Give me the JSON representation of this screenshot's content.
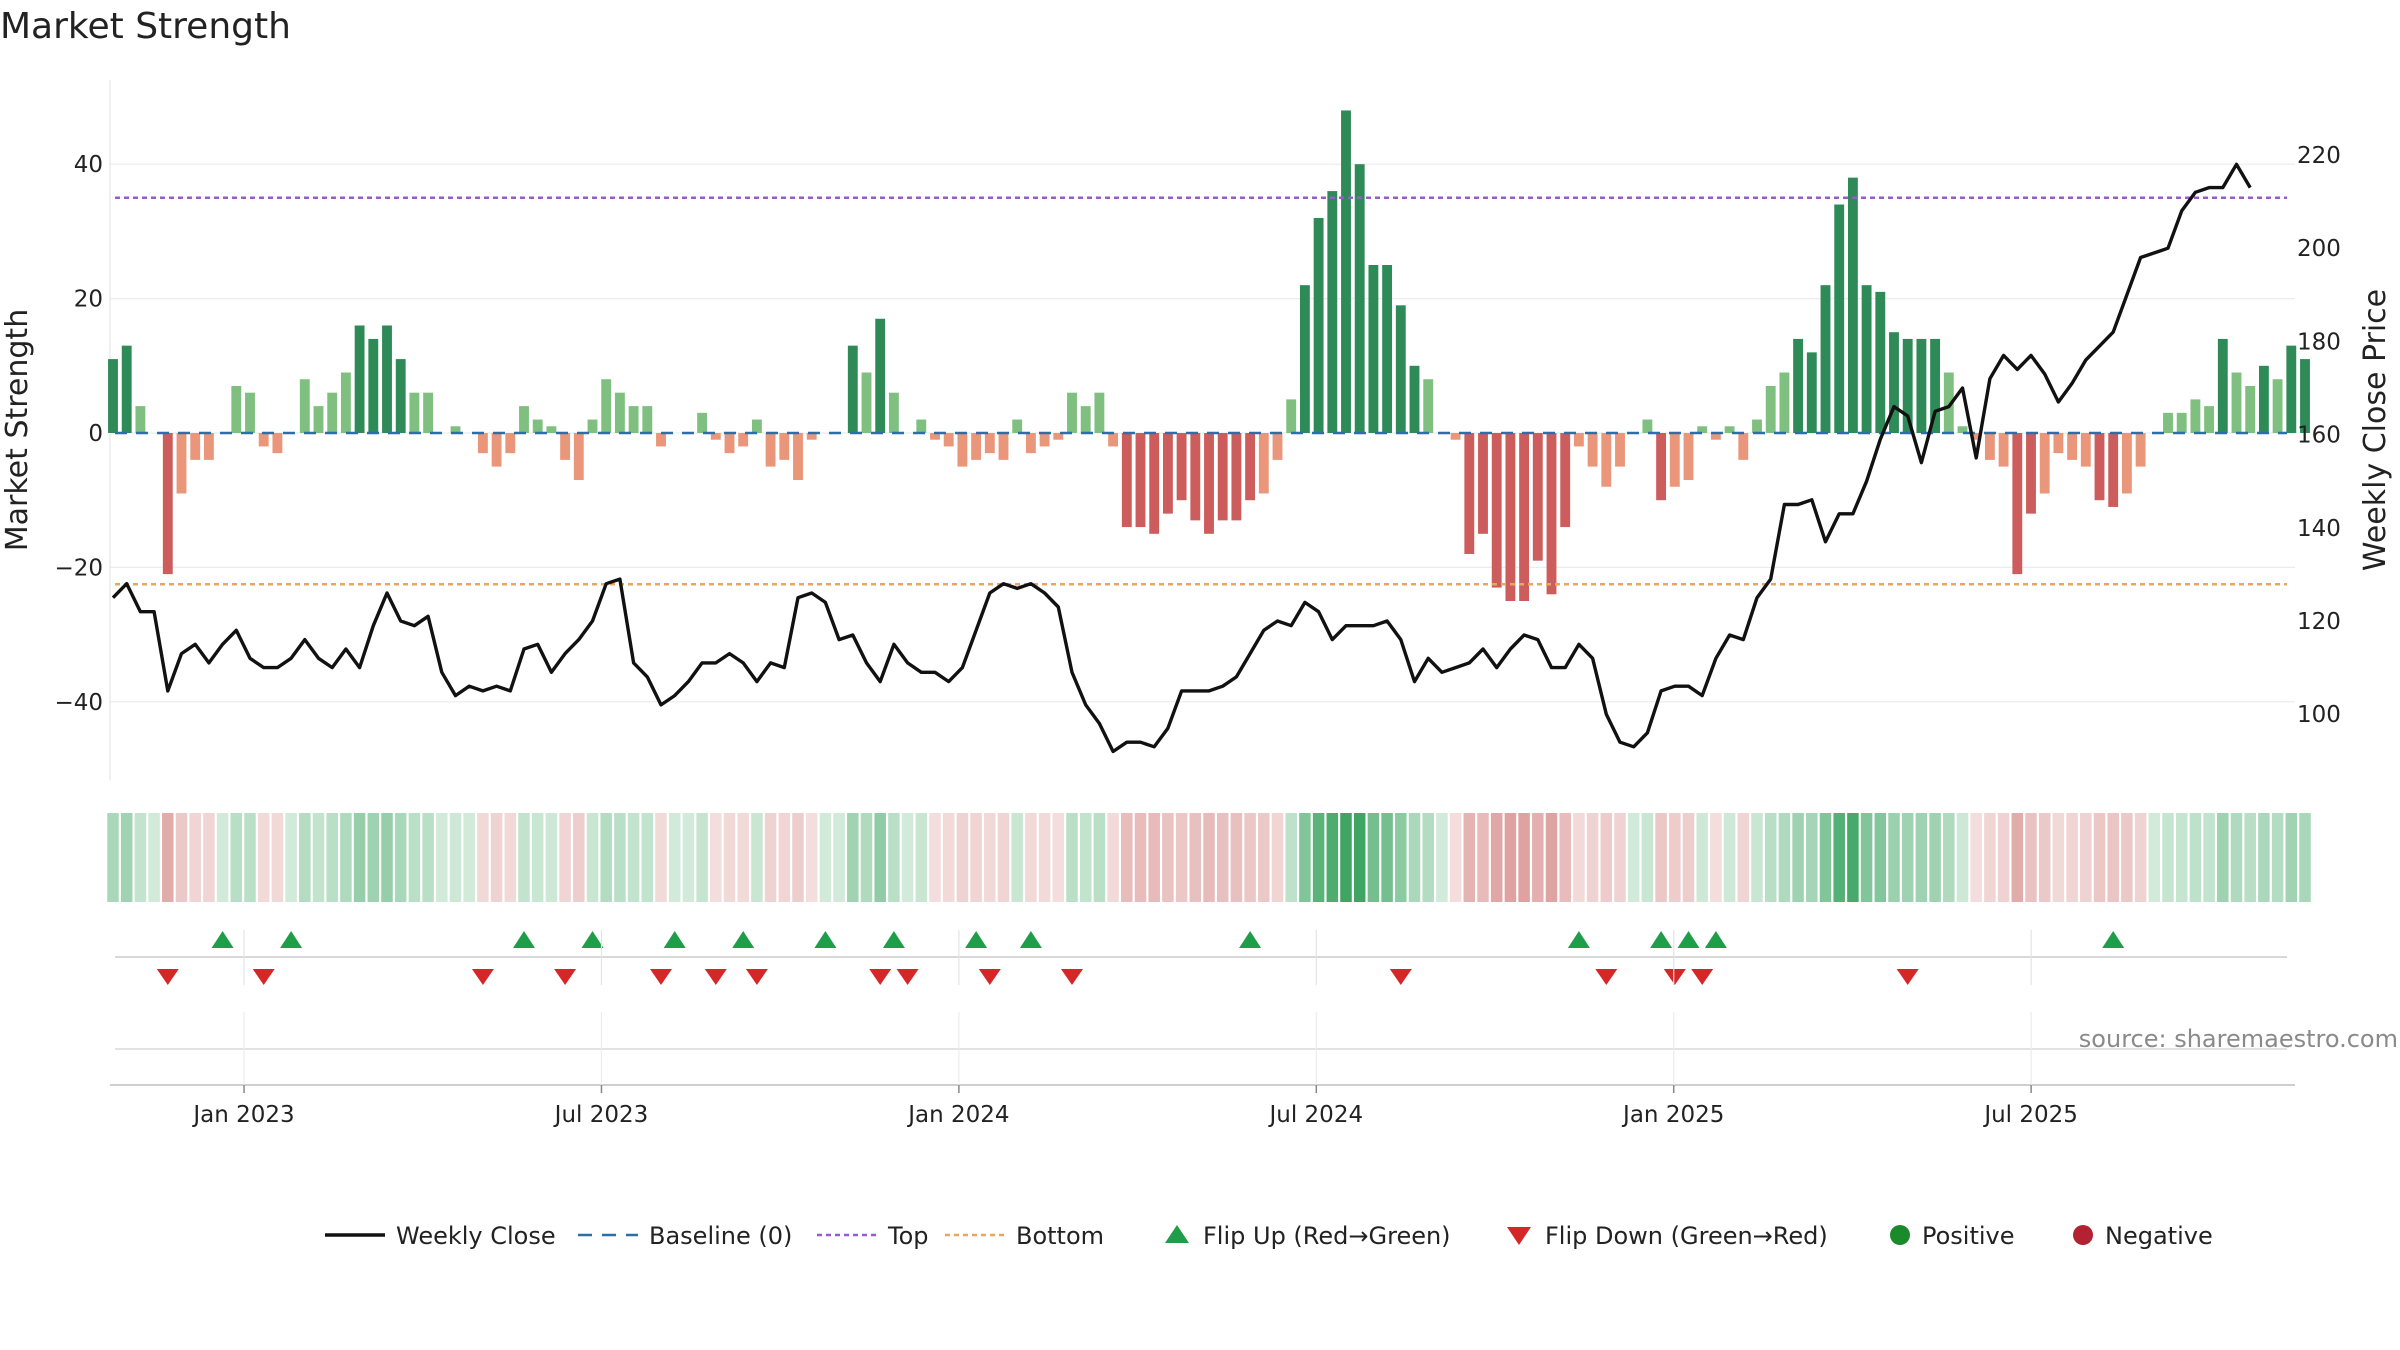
{
  "chart_data": {
    "type": "bar",
    "title": "Market Strength",
    "ylabel": "Market Strength",
    "ylabel_right": "Weekly Close Price",
    "ylim": [
      -52,
      52
    ],
    "ylim_right": [
      87,
      234
    ],
    "yticks": [
      40,
      20,
      0,
      -20,
      -40
    ],
    "yticks_right": [
      220,
      200,
      180,
      160,
      140,
      120,
      100
    ],
    "ytick_labels": [
      "40",
      "20",
      "0",
      "−20",
      "−40"
    ],
    "yticks_right_labels": [
      "220",
      "200",
      "180",
      "160",
      "140",
      "120",
      "100"
    ],
    "top_level": 35,
    "bottom_level": -22.5,
    "baseline_level": 0,
    "x_months_since_oct_2022": [
      0,
      36.8
    ],
    "xticks": [
      {
        "label": "Jan 2023",
        "month": 3
      },
      {
        "label": "Jul 2023",
        "month": 9
      },
      {
        "label": "Jan 2024",
        "month": 15
      },
      {
        "label": "Jul 2024",
        "month": 21
      },
      {
        "label": "Jan 2025",
        "month": 27
      },
      {
        "label": "Jul 2025",
        "month": 33
      }
    ],
    "strength": [
      11,
      13,
      4,
      0,
      -21,
      -9,
      -4,
      -4,
      0,
      7,
      6,
      -2,
      -3,
      0,
      8,
      4,
      6,
      9,
      16,
      14,
      16,
      11,
      6,
      6,
      0,
      1,
      0,
      -3,
      -5,
      -3,
      4,
      2,
      1,
      -4,
      -7,
      2,
      8,
      6,
      4,
      4,
      -2,
      0,
      0,
      3,
      -1,
      -3,
      -2,
      2,
      -5,
      -4,
      -7,
      -1,
      0,
      0,
      13,
      9,
      17,
      6,
      0,
      2,
      -1,
      -2,
      -5,
      -4,
      -3,
      -4,
      2,
      -3,
      -2,
      -1,
      6,
      4,
      6,
      -2,
      -14,
      -14,
      -15,
      -12,
      -10,
      -13,
      -15,
      -13,
      -13,
      -10,
      -9,
      -4,
      5,
      22,
      32,
      36,
      48,
      40,
      25,
      25,
      19,
      10,
      8,
      0,
      -1,
      -18,
      -15,
      -23,
      -25,
      -25,
      -19,
      -24,
      -14,
      -2,
      -5,
      -8,
      -5,
      0,
      2,
      -10,
      -8,
      -7,
      1,
      -1,
      1,
      -4,
      2,
      7,
      9,
      14,
      12,
      22,
      34,
      38,
      22,
      21,
      15,
      14,
      14,
      14,
      9,
      1,
      -1,
      -4,
      -5,
      -21,
      -12,
      -9,
      -3,
      -4,
      -5,
      -10,
      -11,
      -9,
      -5,
      0,
      3,
      3,
      5,
      4,
      14,
      9,
      7,
      10,
      8,
      13,
      11
    ],
    "close": [
      125,
      128,
      122,
      122,
      105,
      113,
      115,
      111,
      115,
      118,
      112,
      110,
      110,
      112,
      116,
      112,
      110,
      114,
      110,
      119,
      126,
      120,
      119,
      121,
      109,
      104,
      106,
      105,
      106,
      105,
      114,
      115,
      109,
      113,
      116,
      120,
      128,
      129,
      111,
      108,
      102,
      104,
      107,
      111,
      111,
      113,
      111,
      107,
      111,
      110,
      125,
      126,
      124,
      116,
      117,
      111,
      107,
      115,
      111,
      109,
      109,
      107,
      110,
      118,
      126,
      128,
      127,
      128,
      126,
      123,
      109,
      102,
      98,
      92,
      94,
      94,
      93,
      97,
      105,
      105,
      105,
      106,
      108,
      113,
      118,
      120,
      119,
      124,
      122,
      116,
      119,
      119,
      119,
      120,
      116,
      107,
      112,
      109,
      110,
      111,
      114,
      110,
      114,
      117,
      116,
      110,
      110,
      115,
      112,
      100,
      94,
      93,
      96,
      105,
      106,
      106,
      104,
      112,
      117,
      116,
      125,
      129,
      145,
      145,
      146,
      137,
      143,
      143,
      150,
      159,
      166,
      164,
      154,
      165,
      166,
      170,
      155,
      172,
      177,
      174,
      177,
      173,
      167,
      171,
      176,
      179,
      182,
      190,
      198,
      199,
      200,
      208,
      212,
      213,
      213,
      218,
      213
    ],
    "flip_up_weeks": [
      8,
      13,
      30,
      35,
      41,
      46,
      52,
      57,
      63,
      67,
      83,
      107,
      113,
      115,
      117,
      146
    ],
    "flip_down_weeks": [
      4,
      11,
      27,
      33,
      40,
      44,
      47,
      56,
      58,
      64,
      70,
      94,
      109,
      114,
      116,
      131
    ],
    "legend": [
      {
        "label": "Weekly Close",
        "marker": "line",
        "color": "#111111"
      },
      {
        "label": "Baseline (0)",
        "marker": "dash",
        "color": "#2b6ea8"
      },
      {
        "label": "Top",
        "marker": "dot",
        "color": "#9b59d0"
      },
      {
        "label": "Bottom",
        "marker": "dot",
        "color": "#e8a85c"
      },
      {
        "label": "Flip Up (Red→Green)",
        "marker": "triangle-up",
        "color": "#1f9e4a"
      },
      {
        "label": "Flip Down (Green→Red)",
        "marker": "triangle-down",
        "color": "#d62728"
      },
      {
        "label": "Positive",
        "marker": "circle",
        "color": "#1a8a2a"
      },
      {
        "label": "Negative",
        "marker": "circle",
        "color": "#b22232"
      }
    ],
    "source": "source: sharemaestro.com"
  },
  "colors": {
    "strong_green": "#2e8b57",
    "light_green": "#7fbf7f",
    "strong_red": "#cd5c5c",
    "light_red": "#e9967a",
    "close_line": "#111111",
    "top_line": "#9b59d0",
    "bottom_line": "#e8a85c",
    "baseline": "#2b6ea8",
    "flip_up": "#1f9e4a",
    "flip_down": "#d62728"
  }
}
